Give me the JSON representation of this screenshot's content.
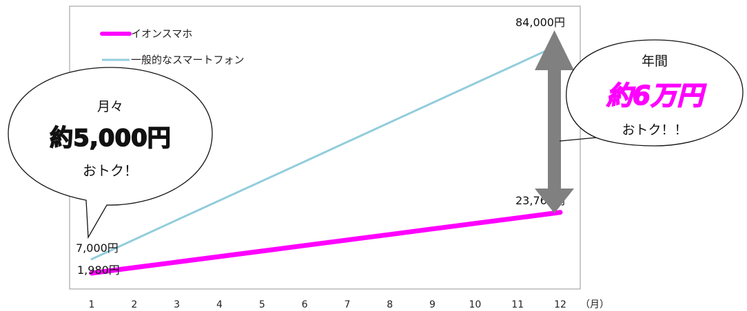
{
  "chart_data": {
    "type": "line",
    "x": [
      1,
      2,
      3,
      4,
      5,
      6,
      7,
      8,
      9,
      10,
      11,
      12
    ],
    "x_unit": "（月）",
    "ylim": [
      0,
      90000
    ],
    "series": [
      {
        "name": "イオンスマホ",
        "color": "#ff00ff",
        "values": [
          1980,
          3960,
          5940,
          7920,
          9900,
          11880,
          13860,
          15840,
          17820,
          19800,
          21780,
          23760
        ],
        "labels": [
          {
            "x": 1,
            "text": "1,980円"
          },
          {
            "x": 12,
            "text": "23,760円"
          }
        ]
      },
      {
        "name": "一般的なスマートフォン",
        "color": "#92cddc",
        "values": [
          7000,
          14000,
          21000,
          28000,
          35000,
          42000,
          49000,
          56000,
          63000,
          70000,
          77000,
          84000
        ],
        "labels": [
          {
            "x": 1,
            "text": "7,000円"
          },
          {
            "x": 12,
            "text": "84,000円"
          }
        ]
      }
    ],
    "legend": "top-left",
    "grid": false,
    "annotations": {
      "left_bubble": {
        "line1": "月々",
        "line2": "約5,000円",
        "line3": "おトク！"
      },
      "right_bubble": {
        "line1": "年間",
        "line2": "約6万円",
        "line3": "おトク！！"
      }
    },
    "arrow_color": "#808080"
  }
}
